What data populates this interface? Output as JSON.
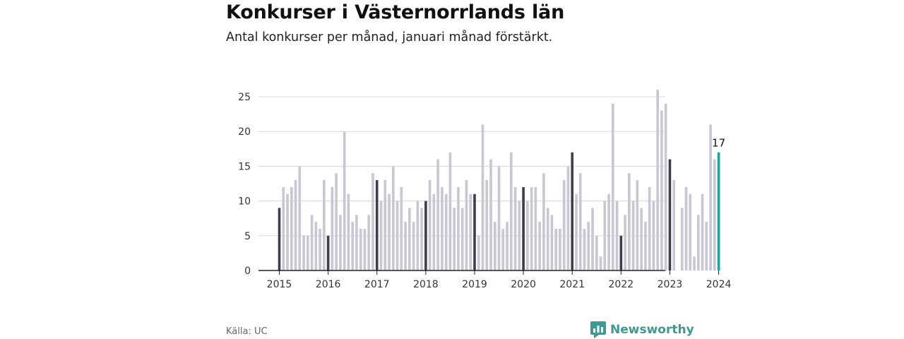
{
  "header": {
    "title": "Konkurser i Västernorrlands län",
    "subtitle": "Antal konkurser per månad, januari månad förstärkt."
  },
  "footer": {
    "source": "Källa: UC",
    "brand": "Newsworthy"
  },
  "colors": {
    "bar": "#c8c7d3",
    "january": "#3f3d4f",
    "latest": "#1aa39a",
    "grid": "#d8d8d8",
    "axis": "#222222",
    "brand": "#3d9a93"
  },
  "chart_data": {
    "type": "bar",
    "title": "Konkurser i Västernorrlands län",
    "subtitle": "Antal konkurser per månad, januari månad förstärkt.",
    "start_month": "2015-01",
    "ylim": [
      0,
      25
    ],
    "yticks": [
      0,
      5,
      10,
      15,
      20,
      25
    ],
    "xticks": [
      "2015",
      "2016",
      "2017",
      "2018",
      "2019",
      "2020",
      "2021",
      "2022",
      "2023",
      "2024"
    ],
    "grid": true,
    "highlight": "January bars darker; latest month (2024-01) highlighted and labeled",
    "latest_label": "17",
    "values": [
      9,
      12,
      11,
      12,
      13,
      15,
      5,
      5,
      8,
      7,
      6,
      13,
      5,
      12,
      14,
      8,
      20,
      11,
      7,
      8,
      6,
      6,
      8,
      14,
      13,
      10,
      13,
      11,
      15,
      10,
      12,
      7,
      9,
      7,
      10,
      9,
      10,
      13,
      11,
      16,
      12,
      11,
      17,
      9,
      12,
      9,
      13,
      11,
      11,
      5,
      21,
      13,
      16,
      7,
      15,
      6,
      7,
      17,
      12,
      10,
      12,
      10,
      12,
      12,
      7,
      14,
      9,
      8,
      6,
      6,
      13,
      15,
      17,
      11,
      14,
      6,
      7,
      9,
      5,
      2,
      10,
      11,
      24,
      10,
      5,
      8,
      14,
      10,
      13,
      9,
      7,
      12,
      10,
      26,
      23,
      24,
      16,
      13,
      0,
      9,
      12,
      11,
      2,
      8,
      11,
      7,
      21,
      16,
      17
    ]
  }
}
